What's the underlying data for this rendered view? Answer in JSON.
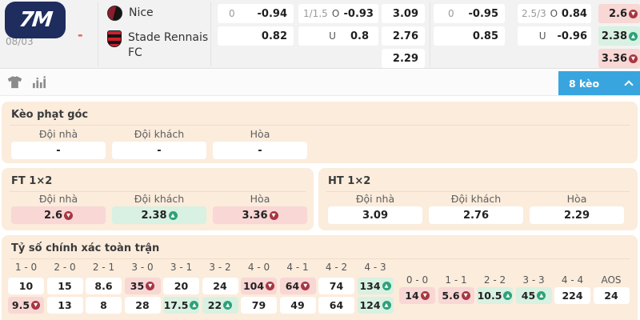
{
  "brand": {
    "logo_text": "7M"
  },
  "match": {
    "date": "08/03",
    "separator": "-",
    "home": {
      "name": "Nice"
    },
    "away": {
      "name": "Stade Rennais FC"
    }
  },
  "odds_table": {
    "handicap_ft": {
      "line": "0",
      "home": "-0.94",
      "away": "0.82"
    },
    "over_under_ft": {
      "line": "1/1.5",
      "over_label": "O",
      "over": "-0.93",
      "under_label": "U",
      "under": "0.8"
    },
    "x12_ht": {
      "home": "3.09",
      "away": "2.76",
      "draw": "2.29"
    },
    "handicap_ht": {
      "line": "0",
      "home": "-0.95",
      "away": "0.85"
    },
    "over_under_ht": {
      "line": "2.5/3",
      "over_label": "O",
      "over": "0.84",
      "under_label": "U",
      "under": "-0.96"
    },
    "x12_ft": {
      "home": {
        "value": "2.6",
        "trend": "down"
      },
      "away": {
        "value": "2.38",
        "trend": "up"
      },
      "draw": {
        "value": "3.36",
        "trend": "down"
      }
    }
  },
  "toolbar": {
    "icons": [
      "jersey-icon",
      "odds-chart-icon"
    ],
    "odds_count_label": "8 kèo"
  },
  "corner_section": {
    "title": "Kèo phạt góc",
    "columns": [
      "Đội nhà",
      "Đội khách",
      "Hòa"
    ],
    "values": [
      {
        "value": "-"
      },
      {
        "value": "-"
      },
      {
        "value": "-"
      }
    ]
  },
  "ft_section": {
    "title": "FT 1×2",
    "columns": [
      "Đội nhà",
      "Đội khách",
      "Hòa"
    ],
    "values": [
      {
        "value": "2.6",
        "trend": "down",
        "tone": "pink"
      },
      {
        "value": "2.38",
        "trend": "up",
        "tone": "mint"
      },
      {
        "value": "3.36",
        "trend": "down",
        "tone": "pink"
      }
    ]
  },
  "ht_section": {
    "title": "HT 1×2",
    "columns": [
      "Đội nhà",
      "Đội khách",
      "Hòa"
    ],
    "values": [
      {
        "value": "3.09"
      },
      {
        "value": "2.76"
      },
      {
        "value": "2.29"
      }
    ]
  },
  "score_section": {
    "title": "Tỷ số chính xác toàn trận",
    "group1": {
      "headers": [
        "1 - 0",
        "2 - 0",
        "2 - 1",
        "3 - 0",
        "3 - 1",
        "3 - 2",
        "4 - 0",
        "4 - 1",
        "4 - 2",
        "4 - 3"
      ],
      "row1": [
        {
          "value": "10"
        },
        {
          "value": "15"
        },
        {
          "value": "8.6"
        },
        {
          "value": "35",
          "trend": "down",
          "tone": "pink"
        },
        {
          "value": "20"
        },
        {
          "value": "24"
        },
        {
          "value": "104",
          "trend": "down",
          "tone": "pink"
        },
        {
          "value": "64",
          "trend": "down",
          "tone": "pink"
        },
        {
          "value": "74"
        },
        {
          "value": "134",
          "trend": "up",
          "tone": "mint"
        }
      ],
      "row2": [
        {
          "value": "9.5",
          "trend": "down",
          "tone": "pink"
        },
        {
          "value": "13"
        },
        {
          "value": "8"
        },
        {
          "value": "28"
        },
        {
          "value": "17.5",
          "trend": "up",
          "tone": "mint"
        },
        {
          "value": "22",
          "trend": "up",
          "tone": "mint"
        },
        {
          "value": "79"
        },
        {
          "value": "49"
        },
        {
          "value": "64"
        },
        {
          "value": "124",
          "trend": "up",
          "tone": "mint"
        }
      ]
    },
    "group2": {
      "headers": [
        "0 - 0",
        "1 - 1",
        "2 - 2",
        "3 - 3",
        "4 - 4",
        "AOS"
      ],
      "row": [
        {
          "value": "14",
          "trend": "down",
          "tone": "pink"
        },
        {
          "value": "5.6",
          "trend": "down",
          "tone": "pink"
        },
        {
          "value": "10.5",
          "trend": "up",
          "tone": "mint"
        },
        {
          "value": "45",
          "trend": "up",
          "tone": "mint"
        },
        {
          "value": "224"
        },
        {
          "value": "24"
        }
      ]
    }
  },
  "colors": {
    "accent_blue": "#39a5df",
    "brand_navy": "#1e2c5e",
    "panel_peach": "#fbecdc",
    "cell_pink": "#f8d7d5",
    "cell_mint": "#d8f1e2",
    "badge_red": "#a63742",
    "badge_green": "#2ea27a"
  }
}
